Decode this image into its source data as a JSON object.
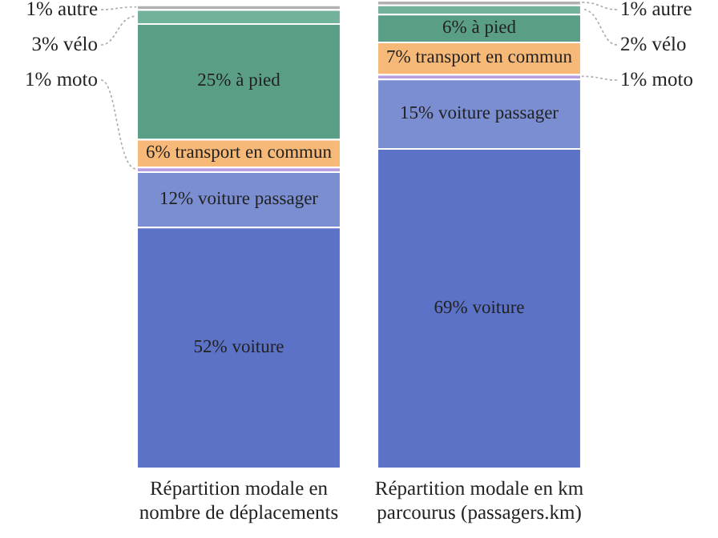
{
  "chart_data": {
    "type": "bar",
    "stacked": true,
    "categories": [
      "Répartition modale en nombre de déplacements",
      "Répartition modale en km parcourus (passagers.km)"
    ],
    "ylim": [
      0,
      101
    ],
    "tick_labels": "x",
    "grid": false,
    "legend": false,
    "series": [
      {
        "color": "#5b72c6",
        "values": [
          52,
          69
        ],
        "value_labels": [
          "52% voiture",
          "69% voiture"
        ]
      },
      {
        "color": "#7b8ed2",
        "values": [
          12,
          15
        ],
        "value_labels": [
          "12% voiture passager",
          "15% voiture passager"
        ]
      },
      {
        "color": "#b69ee0",
        "values": [
          1,
          1
        ],
        "value_labels": [
          "1% moto",
          "1% moto"
        ]
      },
      {
        "color": "#f7b977",
        "values": [
          6,
          7
        ],
        "value_labels": [
          "6% transport en commun",
          "7% transport en commun"
        ]
      },
      {
        "color": "#5a9e86",
        "values": [
          25,
          6
        ],
        "value_labels": [
          "25% à pied",
          "6% à pied"
        ]
      },
      {
        "color": "#72b29a",
        "values": [
          3,
          2
        ],
        "value_labels": [
          "3% vélo",
          "2% vélo"
        ]
      },
      {
        "color": "#b0b0b0",
        "values": [
          1,
          1
        ],
        "value_labels": [
          "1% autre",
          "1% autre"
        ]
      }
    ]
  }
}
